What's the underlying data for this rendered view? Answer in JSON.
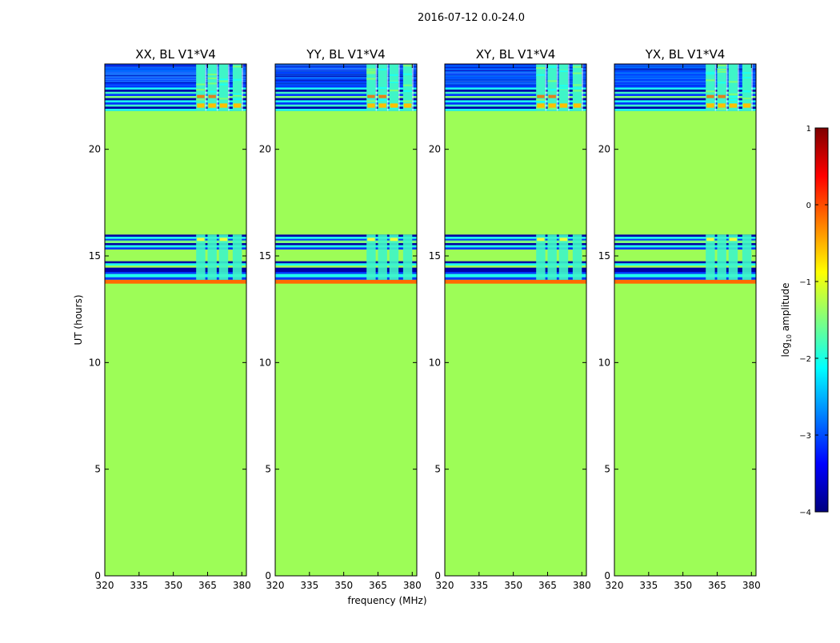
{
  "chart_data": {
    "type": "heatmap",
    "suptitle": "2016-07-12 0.0-24.0",
    "xlabel": "frequency (MHz)",
    "ylabel": "UT (hours)",
    "xlim": [
      320,
      382
    ],
    "ylim": [
      0,
      24
    ],
    "xticks": [
      320,
      335,
      350,
      365,
      380
    ],
    "yticks": [
      0,
      5,
      10,
      15,
      20
    ],
    "panels": [
      {
        "title": "XX, BL V1*V4",
        "strong_rfi": true,
        "bright_row": true
      },
      {
        "title": "YY, BL V1*V4",
        "strong_rfi": true,
        "bright_row": false
      },
      {
        "title": "XY, BL V1*V4",
        "strong_rfi": true,
        "bright_row": false
      },
      {
        "title": "YX, BL V1*V4",
        "strong_rfi": true,
        "bright_row": true
      }
    ],
    "background_value": -1.3,
    "flagged_time_ranges_hours": [
      [
        13.7,
        13.88
      ],
      [
        13.88,
        16.0
      ],
      [
        21.8,
        24.0
      ]
    ],
    "rfi_frequency_bands_mhz": [
      [
        360.0,
        364.0
      ],
      [
        365.0,
        369.0
      ],
      [
        370.0,
        374.0
      ],
      [
        376.0,
        380.0
      ]
    ],
    "colorbar": {
      "label_text": "log",
      "label_sub": "10",
      "label_suffix": " amplitude",
      "range": [
        -4,
        1
      ],
      "ticks": [
        1,
        0,
        -1,
        -2,
        -3,
        -4
      ],
      "tick_labels": [
        "1",
        "0",
        "−1",
        "−2",
        "−3",
        "−4"
      ],
      "colormap": "jet",
      "colors": {
        "background": "#9dfd57",
        "dark_blue": "#0000a8",
        "blue": "#0038ff",
        "mid_blue": "#006cff",
        "cyan": "#1efff0",
        "aqua": "#3ff5c8",
        "light_green": "#7dfd7a",
        "orange": "#ff6a00",
        "yellow_orange": "#ffc000"
      }
    }
  }
}
